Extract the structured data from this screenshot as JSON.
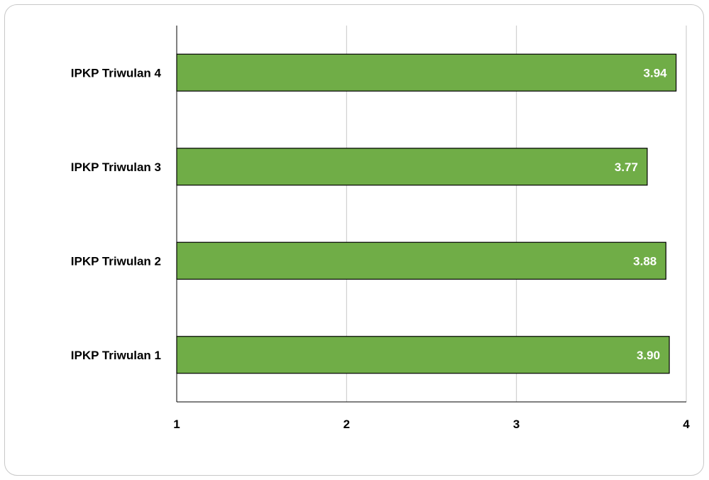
{
  "chart_data": {
    "type": "bar",
    "orientation": "horizontal",
    "title": "",
    "xlabel": "",
    "ylabel": "",
    "categories": [
      "IPKP Triwulan 1",
      "IPKP Triwulan 2",
      "IPKP Triwulan 3",
      "IPKP Triwulan 4"
    ],
    "values": [
      3.9,
      3.88,
      3.77,
      3.94
    ],
    "data_labels": [
      "3.90",
      "3.88",
      "3.77",
      "3.94"
    ],
    "xlim": [
      1,
      4
    ],
    "ticks": [
      "1",
      "2",
      "3",
      "4"
    ],
    "grid": true,
    "legend": "none",
    "bar_color": "#70ad47",
    "bar_border_color": "#000000"
  }
}
